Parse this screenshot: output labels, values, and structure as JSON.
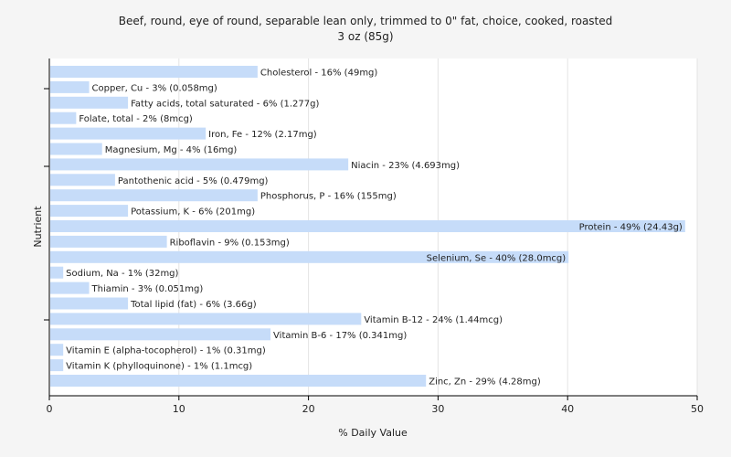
{
  "chart_data": {
    "type": "bar",
    "orientation": "horizontal",
    "title": "Beef, round, eye of round, separable lean only, trimmed to 0\" fat, choice, cooked, roasted",
    "subtitle": "3 oz (85g)",
    "xlabel": "% Daily Value",
    "ylabel": "Nutrient",
    "xlim": [
      0,
      50
    ],
    "xticks": [
      0,
      10,
      20,
      30,
      40,
      50
    ],
    "grid": true,
    "bar_color": "#c6dcf9",
    "categories": [
      "Cholesterol",
      "Copper, Cu",
      "Fatty acids, total saturated",
      "Folate, total",
      "Iron, Fe",
      "Magnesium, Mg",
      "Niacin",
      "Pantothenic acid",
      "Phosphorus, P",
      "Potassium, K",
      "Protein",
      "Riboflavin",
      "Selenium, Se",
      "Sodium, Na",
      "Thiamin",
      "Total lipid (fat)",
      "Vitamin B-12",
      "Vitamin B-6",
      "Vitamin E (alpha-tocopherol)",
      "Vitamin K (phylloquinone)",
      "Zinc, Zn"
    ],
    "values": [
      16,
      3,
      6,
      2,
      12,
      4,
      23,
      5,
      16,
      6,
      49,
      9,
      40,
      1,
      3,
      6,
      24,
      17,
      1,
      1,
      29
    ],
    "labels": [
      "Cholesterol - 16% (49mg)",
      "Copper, Cu - 3% (0.058mg)",
      "Fatty acids, total saturated - 6% (1.277g)",
      "Folate, total - 2% (8mcg)",
      "Iron, Fe - 12% (2.17mg)",
      "Magnesium, Mg - 4% (16mg)",
      "Niacin - 23% (4.693mg)",
      "Pantothenic acid - 5% (0.479mg)",
      "Phosphorus, P - 16% (155mg)",
      "Potassium, K - 6% (201mg)",
      "Protein - 49% (24.43g)",
      "Riboflavin - 9% (0.153mg)",
      "Selenium, Se - 40% (28.0mcg)",
      "Sodium, Na - 1% (32mg)",
      "Thiamin - 3% (0.051mg)",
      "Total lipid (fat) - 6% (3.66g)",
      "Vitamin B-12 - 24% (1.44mcg)",
      "Vitamin B-6 - 17% (0.341mg)",
      "Vitamin E (alpha-tocopherol) - 1% (0.31mg)",
      "Vitamin K (phylloquinone) - 1% (1.1mcg)",
      "Zinc, Zn - 29% (4.28mg)"
    ],
    "label_inside": [
      "Protein",
      "Selenium, Se"
    ]
  }
}
